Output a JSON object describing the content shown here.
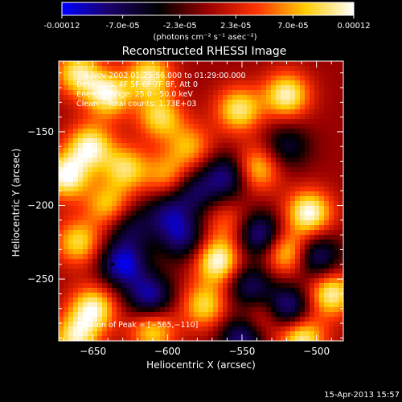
{
  "colorbar": {
    "tick_labels": [
      "-0.00012",
      "-7.0e-05",
      "-2.3e-05",
      "2.3e-05",
      "7.0e-05",
      "0.00012"
    ],
    "tick_values": [
      -0.00012,
      -7e-05,
      -2.3e-05,
      2.3e-05,
      7e-05,
      0.00012
    ],
    "range": [
      -0.00012,
      0.00012
    ],
    "units_label": "(photons cm⁻² s⁻¹ asec⁻²)",
    "colors": [
      "#0000ff",
      "#1a0066",
      "#000000",
      "#990000",
      "#ff3300",
      "#ffcc00",
      "#ffffff"
    ]
  },
  "chart_data": {
    "type": "heatmap",
    "title": "Reconstructed RHESSI Image",
    "xlabel": "Heliocentric X (arcsec)",
    "ylabel": "Heliocentric Y (arcsec)",
    "xlim": [
      -673,
      -482
    ],
    "ylim": [
      -292,
      -102
    ],
    "x_ticks": [
      -650,
      -600,
      -550,
      -500
    ],
    "y_ticks": [
      -150,
      -200,
      -250
    ],
    "x_tick_labels": [
      "−650",
      "−600",
      "−550",
      "−500"
    ],
    "y_tick_labels": [
      "−150",
      "−200",
      "−250"
    ],
    "annotations": [
      "4-Nov-2002 01:25:56.000 to 01:29:00.000",
      "Detectors: 4F 5F 6F 7F 8F, Att 0",
      "Energy Range: 25.0 - 50.0 keV",
      "Clean    Total counts: 1.73E+03"
    ],
    "peak_label": "Position of Peak = [−565,−110]",
    "marker_point": {
      "x": -637,
      "y": -240
    },
    "blobs": [
      {
        "x": -660,
        "y": -110,
        "v": 0.0001
      },
      {
        "x": -640,
        "y": -125,
        "v": 0.00011
      },
      {
        "x": -612,
        "y": -112,
        "v": 0.0001
      },
      {
        "x": -605,
        "y": -140,
        "v": 9e-05
      },
      {
        "x": -652,
        "y": -160,
        "v": 0.00011
      },
      {
        "x": -628,
        "y": -175,
        "v": 9e-05
      },
      {
        "x": -668,
        "y": -180,
        "v": 0.00012
      },
      {
        "x": -600,
        "y": -180,
        "v": 7e-05
      },
      {
        "x": -640,
        "y": -200,
        "v": 8e-05
      },
      {
        "x": -585,
        "y": -160,
        "v": 7e-05
      },
      {
        "x": -660,
        "y": -225,
        "v": 9e-05
      },
      {
        "x": -650,
        "y": -270,
        "v": 0.00011
      },
      {
        "x": -662,
        "y": -290,
        "v": 0.0001
      },
      {
        "x": -552,
        "y": -135,
        "v": 0.0001
      },
      {
        "x": -520,
        "y": -125,
        "v": 0.00011
      },
      {
        "x": -540,
        "y": -175,
        "v": 9e-05
      },
      {
        "x": -505,
        "y": -205,
        "v": 0.00012
      },
      {
        "x": -520,
        "y": -232,
        "v": 0.0001
      },
      {
        "x": -566,
        "y": -238,
        "v": 0.00012
      },
      {
        "x": -575,
        "y": -268,
        "v": 9e-05
      },
      {
        "x": -490,
        "y": -260,
        "v": 0.00011
      },
      {
        "x": -510,
        "y": -290,
        "v": 0.00011
      },
      {
        "x": -610,
        "y": -285,
        "v": 9e-05
      },
      {
        "x": -535,
        "y": -275,
        "v": 6e-05
      },
      {
        "x": -560,
        "y": -212,
        "v": 5e-05
      },
      {
        "x": -630,
        "y": -240,
        "v": -0.00011
      },
      {
        "x": -612,
        "y": -262,
        "v": -0.0001
      },
      {
        "x": -590,
        "y": -222,
        "v": -8e-05
      },
      {
        "x": -582,
        "y": -190,
        "v": -7e-05
      },
      {
        "x": -560,
        "y": -180,
        "v": -9e-05
      },
      {
        "x": -538,
        "y": -220,
        "v": -0.0001
      },
      {
        "x": -500,
        "y": -235,
        "v": -9e-05
      },
      {
        "x": -545,
        "y": -255,
        "v": -8e-05
      },
      {
        "x": -520,
        "y": -270,
        "v": -0.00011
      },
      {
        "x": -550,
        "y": -290,
        "v": -9e-05
      },
      {
        "x": -600,
        "y": -205,
        "v": -7e-05
      },
      {
        "x": -520,
        "y": -160,
        "v": -6e-05
      },
      {
        "x": -625,
        "y": -215,
        "v": -6e-05
      }
    ]
  },
  "footer": {
    "timestamp": "15-Apr-2013 15:57"
  }
}
